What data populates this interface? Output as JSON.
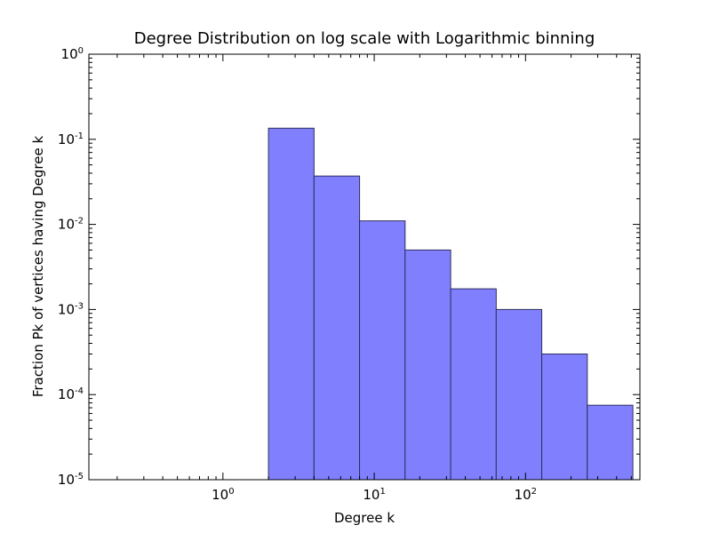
{
  "chart_data": {
    "type": "bar",
    "title": "Degree Distribution on log scale with Logarithmic binning",
    "xlabel": "Degree k",
    "ylabel": "Fraction Pk of vertices having Degree k",
    "xscale": "log",
    "yscale": "log",
    "xlim": [
      0.13,
      570
    ],
    "ylim": [
      1e-05,
      1
    ],
    "grid": false,
    "bar_color": "#8080ff",
    "bar_edge_color": "#2e2e5c",
    "bins": [
      {
        "x0": 2,
        "x1": 4,
        "value": 0.135
      },
      {
        "x0": 4,
        "x1": 8,
        "value": 0.037
      },
      {
        "x0": 8,
        "x1": 16,
        "value": 0.011
      },
      {
        "x0": 16,
        "x1": 32,
        "value": 0.005
      },
      {
        "x0": 32,
        "x1": 64,
        "value": 0.00175
      },
      {
        "x0": 64,
        "x1": 128,
        "value": 0.001
      },
      {
        "x0": 128,
        "x1": 256,
        "value": 0.0003
      },
      {
        "x0": 256,
        "x1": 512,
        "value": 7.5e-05
      }
    ],
    "x_ticks": [
      {
        "base": "10",
        "exp": "0",
        "value": 1
      },
      {
        "base": "10",
        "exp": "1",
        "value": 10
      },
      {
        "base": "10",
        "exp": "2",
        "value": 100
      }
    ],
    "y_ticks": [
      {
        "base": "10",
        "exp": "0",
        "value": 1
      },
      {
        "base": "10",
        "exp": "-1",
        "value": 0.1
      },
      {
        "base": "10",
        "exp": "-2",
        "value": 0.01
      },
      {
        "base": "10",
        "exp": "-3",
        "value": 0.001
      },
      {
        "base": "10",
        "exp": "-4",
        "value": 0.0001
      },
      {
        "base": "10",
        "exp": "-5",
        "value": 1e-05
      }
    ]
  }
}
